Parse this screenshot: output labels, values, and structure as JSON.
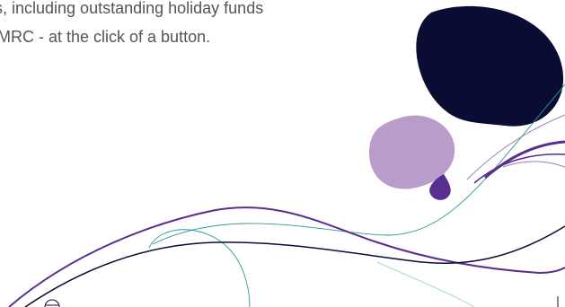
{
  "copy": {
    "line_1": "s, including outstanding holiday funds",
    "line_2": "MRC - at the click of a button."
  },
  "colors": {
    "navy": "#0b0c33",
    "lilac": "#b99cc9",
    "purple": "#5a2d91",
    "teal": "#2e9a8f",
    "text": "#555555"
  }
}
